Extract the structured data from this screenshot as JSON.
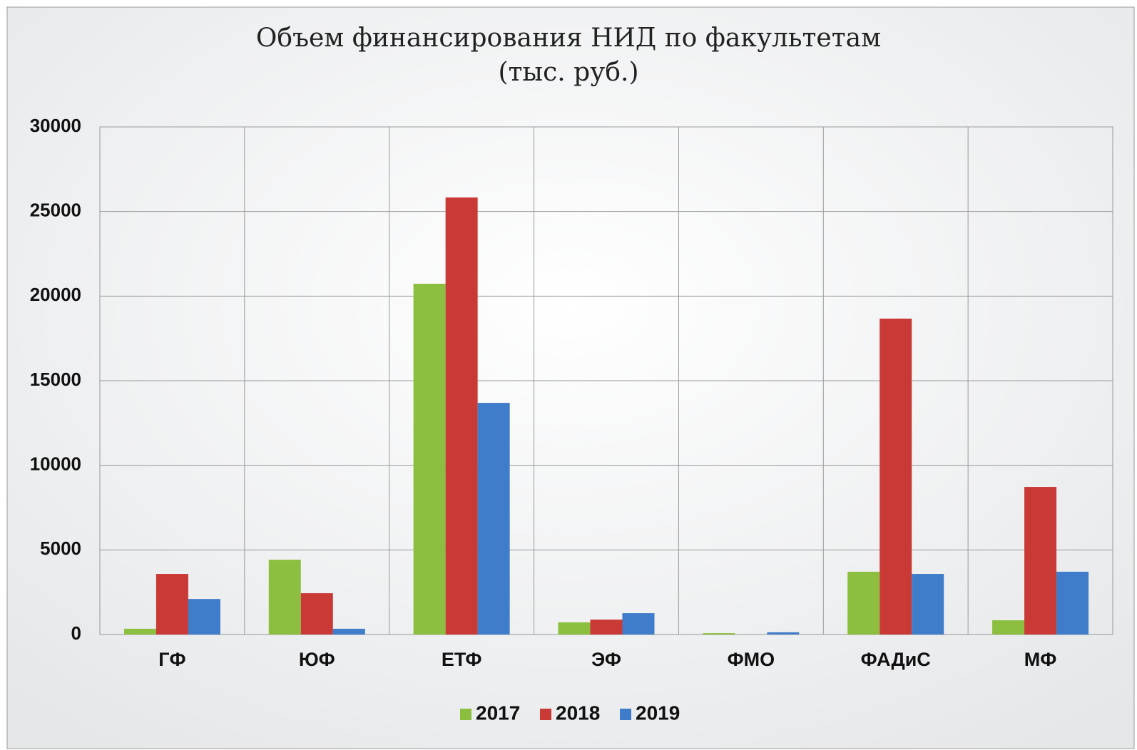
{
  "chart_data": {
    "type": "bar",
    "title": "Объем финансирования НИД по факультетам",
    "subtitle": "(тыс. руб.)",
    "categories": [
      "ГФ",
      "ЮФ",
      "ЕТФ",
      "ЭФ",
      "ФМО",
      "ФАДиС",
      "МФ"
    ],
    "series": [
      {
        "name": "2017",
        "color": "#8cbf3f",
        "values": [
          340,
          4420,
          20730,
          720,
          80,
          3710,
          840
        ]
      },
      {
        "name": "2018",
        "color": "#c93a37",
        "values": [
          3580,
          2440,
          25830,
          880,
          0,
          18670,
          8720
        ]
      },
      {
        "name": "2019",
        "color": "#3f7cc9",
        "values": [
          2100,
          340,
          13690,
          1260,
          130,
          3580,
          3710
        ]
      }
    ],
    "ylim": [
      0,
      30000
    ],
    "yticks": [
      0,
      5000,
      10000,
      15000,
      20000,
      25000,
      30000
    ],
    "grid": true,
    "legend": "bottom"
  }
}
